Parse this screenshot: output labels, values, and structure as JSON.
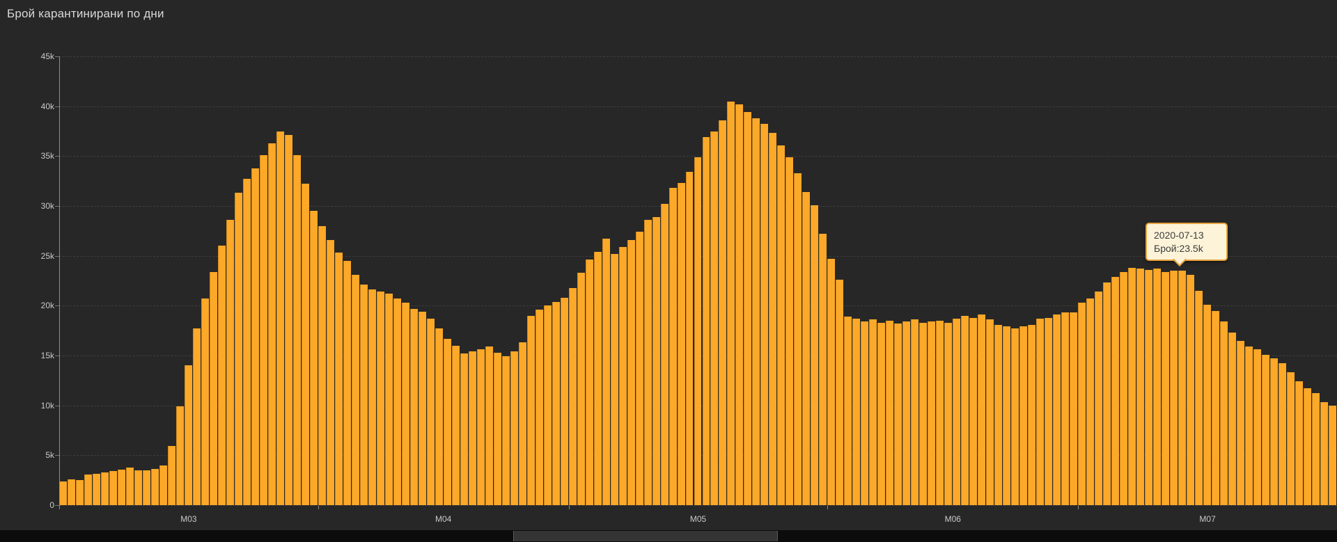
{
  "title": "Брой карантинирани по дни",
  "colors": {
    "background": "#272727",
    "bar": "#fca828",
    "grid": "#3e3e3e",
    "axis_text": "#c9c9c9",
    "tooltip_bg": "#fcf3d9",
    "tooltip_border": "#e8a33d",
    "tooltip_text": "#3c3c3c"
  },
  "y_axis": {
    "labels": [
      "0",
      "5k",
      "10k",
      "15k",
      "20k",
      "25k",
      "30k",
      "35k",
      "40k",
      "45k"
    ],
    "values": [
      0,
      5,
      10,
      15,
      20,
      25,
      30,
      35,
      40,
      45
    ]
  },
  "x_axis": {
    "month_labels": [
      "M03",
      "M04",
      "M05",
      "M06",
      "M07"
    ],
    "month_day_counts": [
      31,
      30,
      31,
      30,
      31
    ]
  },
  "tooltip": {
    "date": "2020-07-13",
    "value_line": "Брой:23.5k",
    "hover_day_index": 134
  },
  "chart_data": {
    "type": "bar",
    "title": "Брой карантинирани по дни",
    "xlabel": "",
    "ylabel": "",
    "unit": "thousands",
    "x_start_date": "2020-03-01",
    "x_end_date": "2020-07-31",
    "ylim": [
      0,
      45
    ],
    "grid": "dashed-horizontal",
    "legend_position": "none",
    "values_k": [
      2.4,
      2.55,
      2.5,
      3.05,
      3.15,
      3.3,
      3.4,
      3.55,
      3.75,
      3.5,
      3.5,
      3.6,
      4.0,
      5.9,
      9.9,
      14.0,
      17.7,
      20.7,
      23.4,
      26.0,
      28.6,
      31.3,
      32.7,
      33.8,
      35.1,
      36.3,
      37.5,
      37.1,
      35.1,
      32.2,
      29.5,
      28.0,
      26.6,
      25.3,
      24.5,
      23.1,
      22.1,
      21.6,
      21.4,
      21.2,
      20.7,
      20.3,
      19.7,
      19.4,
      18.7,
      17.7,
      16.7,
      16.0,
      15.2,
      15.4,
      15.6,
      15.9,
      15.3,
      14.9,
      15.4,
      16.3,
      19.0,
      19.6,
      20.0,
      20.4,
      20.8,
      21.8,
      23.3,
      24.6,
      25.4,
      26.7,
      25.2,
      25.9,
      26.6,
      27.4,
      28.6,
      28.9,
      30.2,
      31.8,
      32.3,
      33.4,
      34.9,
      36.9,
      37.5,
      38.6,
      40.5,
      40.2,
      39.4,
      38.8,
      38.2,
      37.3,
      36.1,
      34.9,
      33.3,
      31.4,
      30.1,
      27.2,
      24.7,
      22.6,
      18.9,
      18.7,
      18.4,
      18.6,
      18.3,
      18.5,
      18.2,
      18.4,
      18.6,
      18.3,
      18.4,
      18.5,
      18.3,
      18.7,
      19.0,
      18.8,
      19.1,
      18.6,
      18.1,
      17.9,
      17.7,
      17.9,
      18.1,
      18.7,
      18.8,
      19.1,
      19.3,
      19.3,
      20.3,
      20.7,
      21.4,
      22.3,
      22.9,
      23.4,
      23.8,
      23.7,
      23.6,
      23.7,
      23.4,
      23.5,
      23.5,
      23.1,
      21.5,
      20.1,
      19.5,
      18.4,
      17.3,
      16.5,
      15.9,
      15.6,
      15.1,
      14.7,
      14.2,
      13.3,
      12.4,
      11.7,
      11.2,
      10.3,
      10.0
    ]
  }
}
